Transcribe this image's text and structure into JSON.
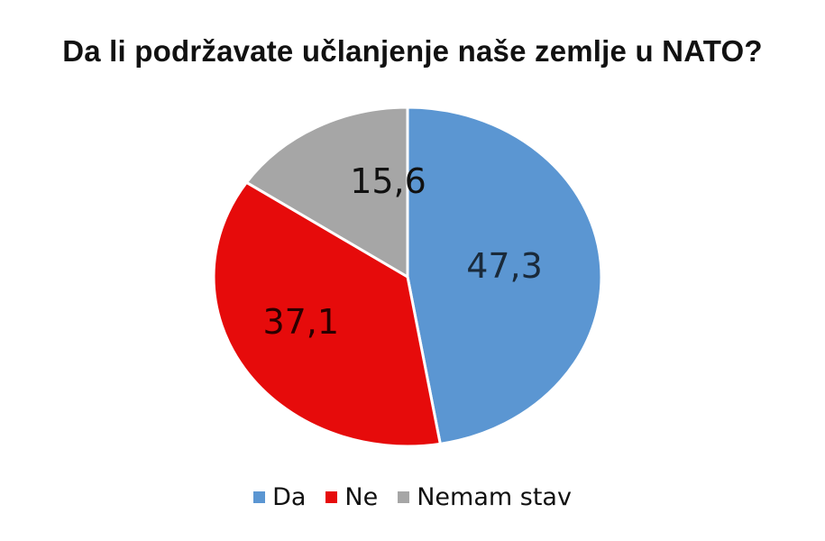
{
  "chart_data": {
    "type": "pie",
    "title": "Da li podržavate učlanjenje naše zemlje u NATO?",
    "slices": [
      {
        "label": "Da",
        "value": 47.3,
        "display": "47,3",
        "color": "#5b96d2"
      },
      {
        "label": "Ne",
        "value": 37.1,
        "display": "37,1",
        "color": "#e60b0b"
      },
      {
        "label": "Nemam stav",
        "value": 15.6,
        "display": "15,6",
        "color": "#a6a6a6"
      }
    ],
    "start": "12 o'clock",
    "direction": "clockwise",
    "legend": "bottom",
    "label_colors": {
      "Da": "#1a2a3a",
      "Ne": "#2a0000",
      "Nemam stav": "#111111"
    }
  }
}
